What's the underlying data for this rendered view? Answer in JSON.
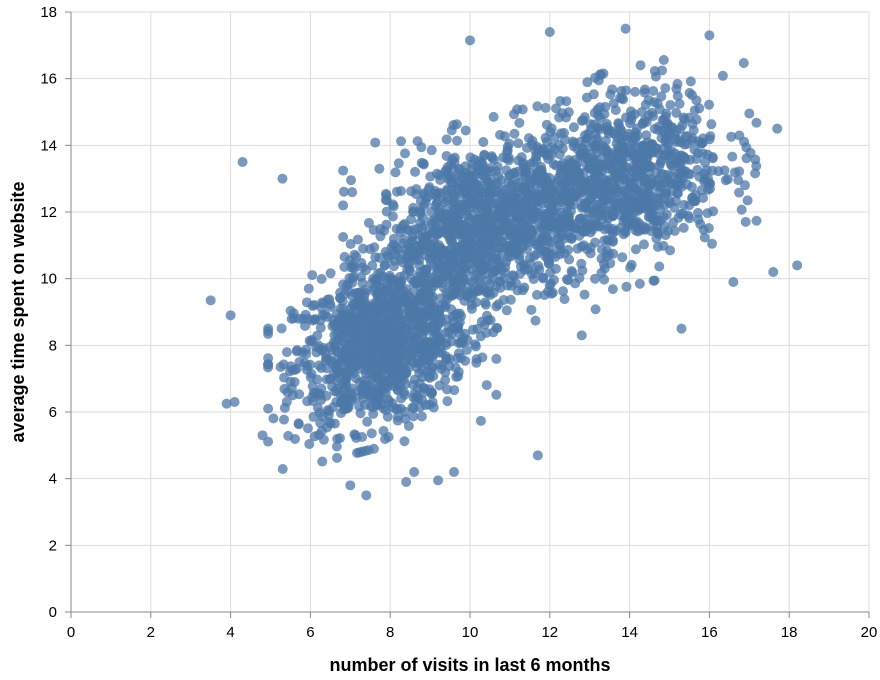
{
  "chart_data": {
    "type": "scatter",
    "title": "",
    "xlabel": "number of visits in last 6 months",
    "ylabel": "average time spent on website",
    "xlim": [
      0,
      20
    ],
    "ylim": [
      0,
      18
    ],
    "x_ticks": [
      "0",
      "2",
      "4",
      "6",
      "8",
      "10",
      "12",
      "14",
      "16",
      "18",
      "20"
    ],
    "y_ticks": [
      "0",
      "2",
      "4",
      "6",
      "8",
      "10",
      "12",
      "14",
      "16",
      "18"
    ],
    "grid": true,
    "point_color": "#4c78a8",
    "clusters": [
      {
        "center_x": 7.8,
        "center_y": 8.0,
        "spread_x": 1.1,
        "spread_y": 1.3,
        "count": 1100
      },
      {
        "center_x": 10.2,
        "center_y": 11.5,
        "spread_x": 1.3,
        "spread_y": 1.4,
        "count": 1100
      },
      {
        "center_x": 13.8,
        "center_y": 13.0,
        "spread_x": 1.3,
        "spread_y": 1.4,
        "count": 900
      }
    ],
    "outliers": [
      [
        3.5,
        9.35
      ],
      [
        3.9,
        6.25
      ],
      [
        4.0,
        8.9
      ],
      [
        4.1,
        6.3
      ],
      [
        4.3,
        13.5
      ],
      [
        4.8,
        5.3
      ],
      [
        5.3,
        13.0
      ],
      [
        7.0,
        3.8
      ],
      [
        7.4,
        3.5
      ],
      [
        8.4,
        3.9
      ],
      [
        8.6,
        4.2
      ],
      [
        9.2,
        3.95
      ],
      [
        9.6,
        4.2
      ],
      [
        10.0,
        17.15
      ],
      [
        11.7,
        4.7
      ],
      [
        12.0,
        17.4
      ],
      [
        13.9,
        17.5
      ],
      [
        16.0,
        17.3
      ],
      [
        17.6,
        10.2
      ],
      [
        18.2,
        10.4
      ],
      [
        17.7,
        14.5
      ],
      [
        15.3,
        8.5
      ],
      [
        12.8,
        8.3
      ],
      [
        16.6,
        9.9
      ]
    ]
  }
}
